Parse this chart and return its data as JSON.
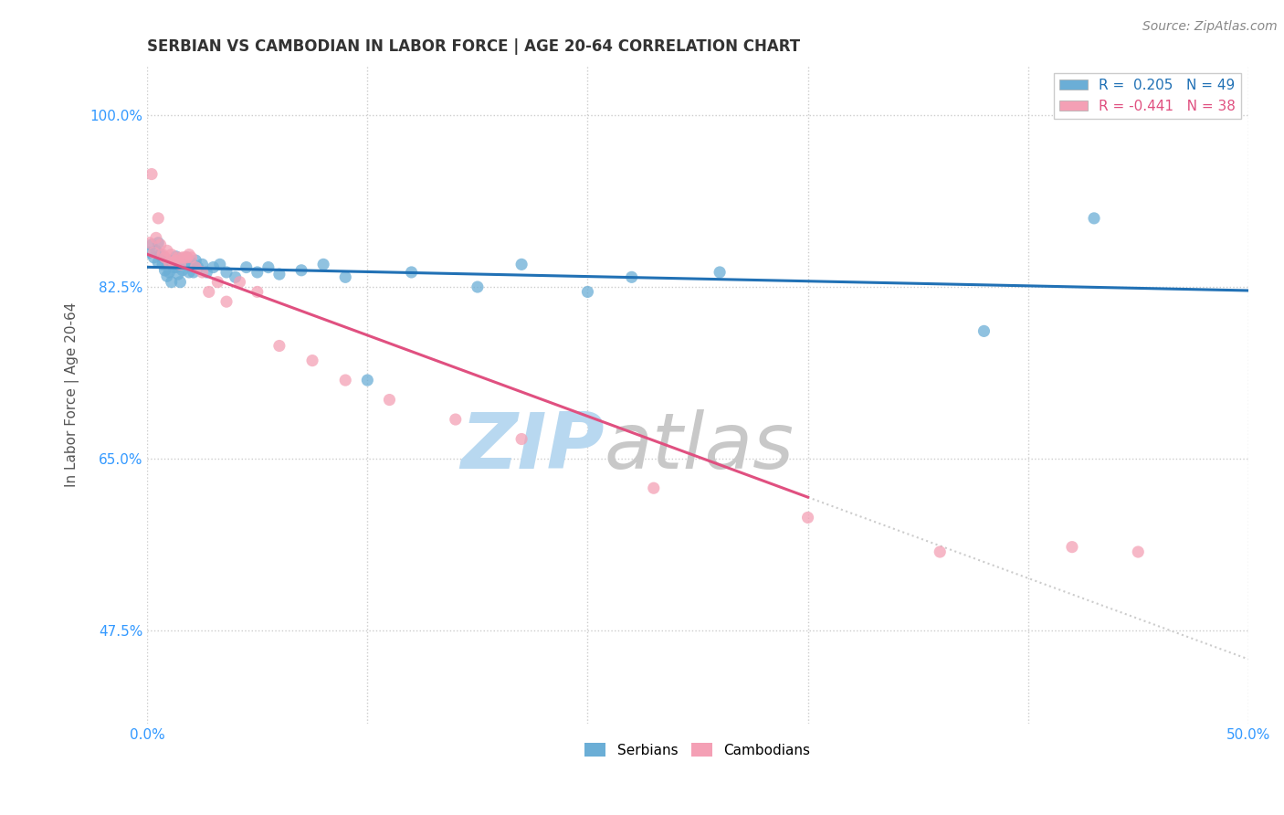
{
  "title": "SERBIAN VS CAMBODIAN IN LABOR FORCE | AGE 20-64 CORRELATION CHART",
  "source_text": "Source: ZipAtlas.com",
  "ylabel": "In Labor Force | Age 20-64",
  "xlim": [
    0.0,
    0.5
  ],
  "ylim": [
    0.38,
    1.05
  ],
  "legend_r_serbian": "0.205",
  "legend_n_serbian": "49",
  "legend_r_cambodian": "-0.441",
  "legend_n_cambodian": "38",
  "serbian_color": "#6baed6",
  "cambodian_color": "#f4a0b5",
  "trend_serbian_color": "#2171b5",
  "trend_cambodian_color": "#e05080",
  "watermark_color": "#cde4f5",
  "grid_color": "#cccccc",
  "background_color": "#ffffff",
  "title_color": "#333333",
  "axis_label_color": "#555555",
  "tick_color": "#3399ff",
  "title_fontsize": 12,
  "label_fontsize": 11,
  "tick_fontsize": 11,
  "serbian_scatter_x": [
    0.001,
    0.002,
    0.003,
    0.004,
    0.005,
    0.005,
    0.006,
    0.007,
    0.007,
    0.008,
    0.009,
    0.01,
    0.01,
    0.011,
    0.012,
    0.013,
    0.013,
    0.014,
    0.015,
    0.016,
    0.017,
    0.018,
    0.019,
    0.02,
    0.021,
    0.022,
    0.023,
    0.025,
    0.027,
    0.03,
    0.033,
    0.036,
    0.04,
    0.045,
    0.05,
    0.055,
    0.06,
    0.07,
    0.08,
    0.09,
    0.1,
    0.12,
    0.15,
    0.17,
    0.2,
    0.22,
    0.26,
    0.38,
    0.43
  ],
  "serbian_scatter_y": [
    0.86,
    0.868,
    0.855,
    0.862,
    0.87,
    0.85,
    0.858,
    0.848,
    0.855,
    0.842,
    0.836,
    0.84,
    0.852,
    0.83,
    0.845,
    0.845,
    0.856,
    0.838,
    0.83,
    0.842,
    0.848,
    0.855,
    0.84,
    0.85,
    0.84,
    0.852,
    0.845,
    0.848,
    0.84,
    0.845,
    0.848,
    0.84,
    0.835,
    0.845,
    0.84,
    0.845,
    0.838,
    0.842,
    0.848,
    0.835,
    0.73,
    0.84,
    0.825,
    0.848,
    0.82,
    0.835,
    0.84,
    0.78,
    0.895
  ],
  "cambodian_scatter_x": [
    0.001,
    0.002,
    0.003,
    0.004,
    0.005,
    0.006,
    0.007,
    0.008,
    0.009,
    0.01,
    0.011,
    0.012,
    0.013,
    0.014,
    0.015,
    0.016,
    0.017,
    0.018,
    0.019,
    0.02,
    0.022,
    0.025,
    0.028,
    0.032,
    0.036,
    0.042,
    0.05,
    0.06,
    0.075,
    0.09,
    0.11,
    0.14,
    0.17,
    0.23,
    0.3,
    0.36,
    0.42,
    0.45
  ],
  "cambodian_scatter_y": [
    0.87,
    0.94,
    0.86,
    0.875,
    0.895,
    0.868,
    0.858,
    0.855,
    0.862,
    0.85,
    0.858,
    0.85,
    0.852,
    0.855,
    0.848,
    0.855,
    0.855,
    0.855,
    0.858,
    0.855,
    0.845,
    0.84,
    0.82,
    0.83,
    0.81,
    0.83,
    0.82,
    0.765,
    0.75,
    0.73,
    0.71,
    0.69,
    0.67,
    0.62,
    0.59,
    0.555,
    0.56,
    0.555
  ],
  "yticks": [
    0.475,
    0.65,
    0.825,
    1.0
  ],
  "yticklabels": [
    "47.5%",
    "65.0%",
    "82.5%",
    "100.0%"
  ]
}
